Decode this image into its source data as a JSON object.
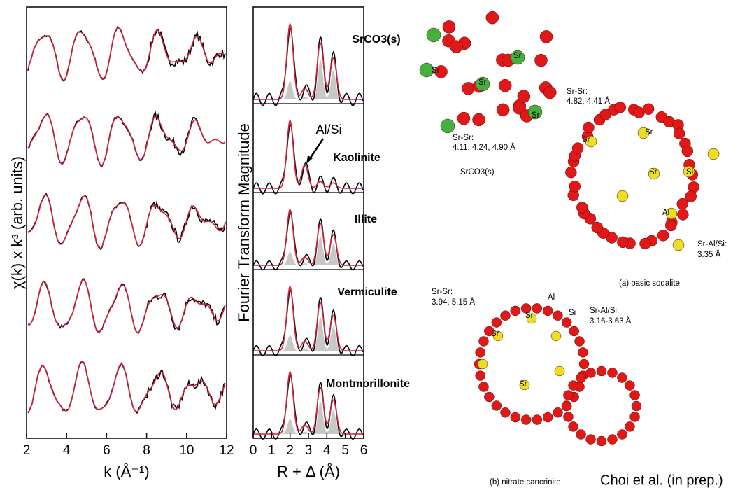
{
  "chart_data": [
    {
      "type": "line",
      "ylabel": "χ(k) x k³ (arb. units)",
      "xlabel": "k (Å⁻¹)",
      "xlim": [
        2,
        12
      ],
      "xticks": [
        2,
        4,
        6,
        8,
        10,
        12
      ]
    },
    {
      "type": "line",
      "ylabel": "Fourier Transform Magnitude",
      "xlabel": "R + Δ (Å)",
      "xlim": [
        0,
        6
      ],
      "xticks": [
        0,
        1,
        2,
        3,
        4,
        5,
        6
      ],
      "annotations": [
        "SrCO3(s)",
        "Al/Si",
        "Kaolinite",
        "Illite",
        "Vermiculite",
        "Montmorillonite"
      ]
    }
  ],
  "structures": {
    "srco3": {
      "distance_label": "Sr-Sr:",
      "distances": "4.11, 4.24, 4.90 Å",
      "caption": "SrCO3(s)",
      "atoms": [
        "Sr",
        "Sr",
        "Sr",
        "Sr"
      ]
    },
    "sodalite": {
      "sr_sr_label": "Sr-Sr:",
      "sr_sr": "4.82, 4.41 Å",
      "sr_alsi_label": "Sr-Al/Si:",
      "sr_alsi": "3.35 Å",
      "caption": "(a) basic sodalite",
      "atoms": [
        "Sr",
        "Sr",
        "Sr",
        "Si",
        "Al"
      ]
    },
    "cancrinite": {
      "sr_sr_label": "Sr-Sr:",
      "sr_sr": "3.94, 5.15 Å",
      "sr_alsi_label": "Sr-Al/Si:",
      "sr_alsi": "3.16-3.63 Å",
      "caption": "(b) nitrate cancrinite",
      "atoms": [
        "Al",
        "Sr",
        "Si",
        "Sr",
        "Sr"
      ]
    }
  },
  "credit": "Choi et al. (in prep.)"
}
